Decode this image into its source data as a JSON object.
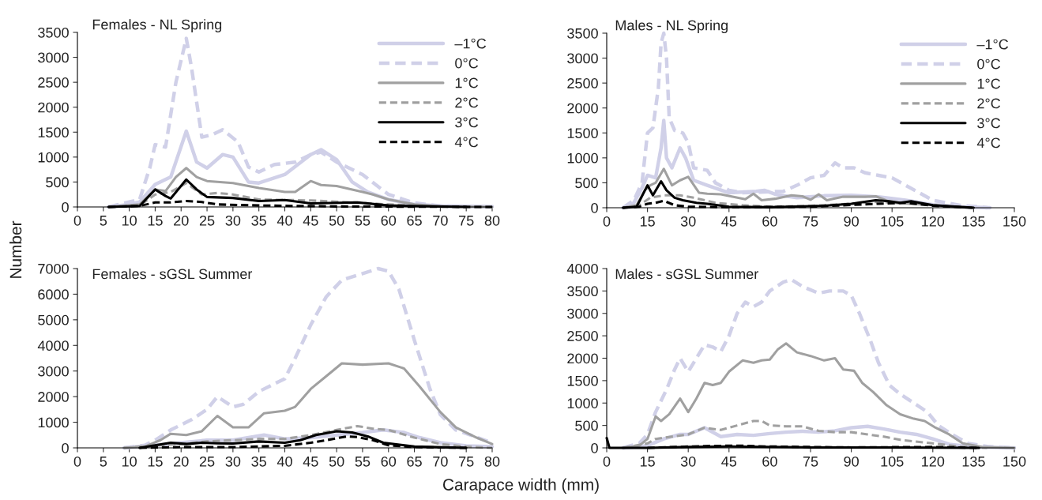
{
  "chart_data": [
    {
      "type": "line",
      "title": "Females - NL Spring",
      "ylabel": "Number",
      "xlim": [
        0,
        80
      ],
      "xticks": [
        0,
        5,
        10,
        15,
        20,
        25,
        30,
        35,
        40,
        45,
        50,
        55,
        60,
        65,
        70,
        75,
        80
      ],
      "ylim": [
        0,
        3500
      ],
      "yticks": [
        0,
        500,
        1000,
        1500,
        2000,
        2500,
        3000,
        3500
      ],
      "legend": "top right",
      "grid": false,
      "series": [
        {
          "name": "–1°C",
          "color": "#d0d0e8",
          "line_style": "solid",
          "x": [
            6,
            10,
            12,
            15,
            18,
            21,
            23,
            25,
            28,
            30,
            33,
            35,
            40,
            45,
            47,
            50,
            53,
            56,
            60,
            65,
            70,
            80
          ],
          "values": [
            0,
            50,
            100,
            450,
            600,
            1520,
            900,
            780,
            1050,
            1000,
            500,
            480,
            650,
            1050,
            1150,
            950,
            500,
            300,
            150,
            50,
            20,
            10
          ]
        },
        {
          "name": "0°C",
          "color": "#d0d0e8",
          "line_style": "dashed",
          "x": [
            6,
            10,
            12,
            14,
            15,
            17,
            19,
            21,
            22,
            24,
            26,
            28,
            31,
            33,
            35,
            38,
            42,
            45,
            47,
            50,
            55,
            60,
            65,
            70,
            80
          ],
          "values": [
            0,
            100,
            150,
            800,
            1250,
            1200,
            2500,
            3380,
            2800,
            1400,
            1450,
            1550,
            1300,
            800,
            700,
            850,
            900,
            1050,
            1100,
            900,
            650,
            250,
            80,
            20,
            0
          ]
        },
        {
          "name": "1°C",
          "color": "#a0a0a0",
          "line_style": "solid",
          "x": [
            6,
            12,
            15,
            17,
            19,
            21,
            23,
            25,
            30,
            35,
            40,
            42,
            45,
            47,
            50,
            55,
            57,
            60,
            65,
            70,
            80
          ],
          "values": [
            0,
            50,
            350,
            320,
            600,
            780,
            600,
            520,
            480,
            380,
            300,
            300,
            520,
            440,
            420,
            300,
            250,
            150,
            50,
            10,
            0
          ]
        },
        {
          "name": "2°C",
          "color": "#a0a0a0",
          "line_style": "dashed",
          "x": [
            6,
            12,
            15,
            18,
            21,
            24,
            27,
            30,
            35,
            45,
            55,
            60,
            70,
            80
          ],
          "values": [
            0,
            30,
            250,
            300,
            480,
            250,
            280,
            250,
            150,
            130,
            80,
            50,
            10,
            0
          ]
        },
        {
          "name": "3°C",
          "color": "#000000",
          "line_style": "solid",
          "x": [
            6,
            12,
            15,
            17,
            18,
            21,
            23,
            25,
            30,
            35,
            40,
            45,
            54,
            60,
            75
          ],
          "values": [
            0,
            20,
            350,
            220,
            170,
            550,
            350,
            200,
            180,
            120,
            140,
            70,
            90,
            30,
            0
          ]
        },
        {
          "name": "4°C",
          "color": "#000000",
          "line_style": "dashed",
          "x": [
            6,
            12,
            15,
            18,
            21,
            24,
            27,
            35,
            50,
            80
          ],
          "values": [
            0,
            20,
            90,
            90,
            120,
            100,
            50,
            30,
            10,
            0
          ]
        }
      ]
    },
    {
      "type": "line",
      "title": "Males - NL Spring",
      "xlim": [
        0,
        150
      ],
      "xticks": [
        0,
        15,
        30,
        45,
        60,
        75,
        90,
        105,
        120,
        135,
        150
      ],
      "ylim": [
        0,
        3500
      ],
      "yticks": [
        0,
        500,
        1000,
        1500,
        2000,
        2500,
        3000,
        3500
      ],
      "legend": "top right",
      "grid": false,
      "series": [
        {
          "name": "–1°C",
          "color": "#d0d0e8",
          "line_style": "solid",
          "x": [
            6,
            10,
            13,
            15,
            18,
            20,
            21,
            22,
            24,
            27,
            29,
            32,
            37,
            45,
            55,
            58,
            62,
            70,
            80,
            90,
            100,
            110,
            120,
            130,
            141
          ],
          "values": [
            0,
            100,
            400,
            650,
            600,
            1200,
            1750,
            1000,
            800,
            1200,
            1000,
            550,
            450,
            300,
            330,
            350,
            270,
            200,
            240,
            250,
            220,
            150,
            60,
            20,
            0
          ]
        },
        {
          "name": "0°C",
          "color": "#d0d0e8",
          "line_style": "dashed",
          "x": [
            6,
            10,
            13,
            15,
            17,
            19,
            20,
            21,
            22,
            23,
            25,
            28,
            30,
            32,
            37,
            40,
            45,
            50,
            60,
            65,
            70,
            75,
            80,
            84,
            87,
            91,
            95,
            100,
            105,
            110,
            120,
            130,
            140
          ],
          "values": [
            0,
            150,
            500,
            1500,
            1600,
            2400,
            3300,
            3500,
            3000,
            1800,
            1550,
            1500,
            1300,
            800,
            750,
            500,
            350,
            300,
            320,
            330,
            450,
            600,
            650,
            900,
            800,
            800,
            700,
            650,
            600,
            450,
            150,
            50,
            0
          ]
        },
        {
          "name": "1°C",
          "color": "#a0a0a0",
          "line_style": "solid",
          "x": [
            6,
            11,
            14,
            16,
            18,
            21,
            24,
            27,
            30,
            34,
            37,
            42,
            51,
            54,
            57,
            62,
            68,
            72,
            75,
            78,
            81,
            87,
            95,
            99,
            105,
            112,
            120,
            130,
            135
          ],
          "values": [
            0,
            50,
            350,
            450,
            500,
            780,
            450,
            550,
            620,
            300,
            280,
            270,
            170,
            280,
            150,
            180,
            250,
            230,
            160,
            270,
            150,
            220,
            220,
            230,
            100,
            80,
            50,
            10,
            0
          ]
        },
        {
          "name": "2°C",
          "color": "#a0a0a0",
          "line_style": "dashed",
          "x": [
            6,
            12,
            16,
            21,
            27,
            32,
            40,
            50,
            60,
            75,
            90,
            100,
            105,
            115,
            125,
            135
          ],
          "values": [
            0,
            50,
            200,
            250,
            250,
            200,
            100,
            50,
            20,
            40,
            80,
            120,
            100,
            80,
            30,
            0
          ]
        },
        {
          "name": "3°C",
          "color": "#000000",
          "line_style": "solid",
          "x": [
            6,
            11,
            15,
            17,
            20,
            22,
            25,
            28,
            33,
            37,
            45,
            60,
            80,
            90,
            99,
            104,
            108,
            112,
            120,
            135
          ],
          "values": [
            0,
            20,
            450,
            250,
            530,
            350,
            200,
            150,
            100,
            80,
            20,
            10,
            40,
            80,
            150,
            130,
            100,
            130,
            50,
            0
          ]
        },
        {
          "name": "4°C",
          "color": "#000000",
          "line_style": "dashed",
          "x": [
            6,
            12,
            15,
            18,
            21,
            25,
            30,
            45,
            75,
            100,
            110,
            120,
            135
          ],
          "values": [
            0,
            20,
            80,
            100,
            140,
            50,
            20,
            10,
            20,
            80,
            100,
            40,
            0
          ]
        }
      ]
    },
    {
      "type": "line",
      "title": "Females - sGSL Summer",
      "xlabel": "Carapace width (mm)",
      "xlim": [
        0,
        80
      ],
      "xticks": [
        0,
        5,
        10,
        15,
        20,
        25,
        30,
        35,
        40,
        45,
        50,
        55,
        60,
        65,
        70,
        75,
        80
      ],
      "ylim": [
        0,
        7000
      ],
      "yticks": [
        0,
        1000,
        2000,
        3000,
        4000,
        5000,
        6000,
        7000
      ],
      "grid": false,
      "series": [
        {
          "color": "#d0d0e8",
          "line_style": "solid",
          "x": [
            9,
            15,
            20,
            25,
            30,
            36,
            40,
            45,
            50,
            55,
            59,
            63,
            66,
            70,
            75,
            80
          ],
          "values": [
            0,
            100,
            200,
            300,
            300,
            500,
            350,
            400,
            500,
            600,
            700,
            600,
            400,
            200,
            80,
            50
          ]
        },
        {
          "color": "#d0d0e8",
          "line_style": "dashed",
          "x": [
            9,
            13,
            15,
            18,
            22,
            25,
            27,
            30,
            32,
            35,
            40,
            42,
            45,
            48,
            51,
            55,
            58,
            60,
            62,
            65,
            68,
            70,
            73,
            80
          ],
          "values": [
            0,
            100,
            300,
            700,
            1100,
            1500,
            2000,
            1600,
            1700,
            2200,
            2700,
            3500,
            4800,
            5900,
            6550,
            6800,
            7000,
            6900,
            6200,
            4200,
            2300,
            1300,
            700,
            200
          ]
        },
        {
          "color": "#a0a0a0",
          "line_style": "solid",
          "x": [
            9,
            13,
            16,
            18,
            21,
            24,
            27,
            30,
            33,
            36,
            40,
            42,
            45,
            48,
            51,
            55,
            60,
            63,
            66,
            70,
            73,
            77,
            80
          ],
          "values": [
            0,
            50,
            300,
            550,
            500,
            650,
            1250,
            800,
            800,
            1350,
            1450,
            1600,
            2300,
            2800,
            3300,
            3250,
            3300,
            3100,
            2400,
            1400,
            800,
            400,
            150
          ]
        },
        {
          "color": "#a0a0a0",
          "line_style": "dashed",
          "x": [
            9,
            15,
            20,
            25,
            30,
            35,
            40,
            45,
            50,
            54,
            57,
            60,
            65,
            70,
            75,
            80
          ],
          "values": [
            0,
            100,
            150,
            250,
            300,
            350,
            350,
            500,
            700,
            850,
            750,
            700,
            400,
            150,
            50,
            0
          ]
        },
        {
          "color": "#000000",
          "line_style": "solid",
          "x": [
            12,
            15,
            18,
            21,
            24,
            27,
            30,
            35,
            40,
            43,
            46,
            50,
            53,
            56,
            59,
            65,
            75
          ],
          "values": [
            0,
            100,
            200,
            150,
            200,
            180,
            170,
            250,
            200,
            300,
            500,
            650,
            600,
            450,
            200,
            50,
            0
          ]
        },
        {
          "color": "#000000",
          "line_style": "dashed",
          "x": [
            12,
            20,
            30,
            40,
            45,
            48,
            52,
            54,
            57,
            60,
            65,
            75
          ],
          "values": [
            0,
            30,
            30,
            80,
            200,
            300,
            450,
            420,
            300,
            100,
            30,
            0
          ]
        }
      ]
    },
    {
      "type": "line",
      "title": "Males - sGSL Summer",
      "xlim": [
        0,
        150
      ],
      "xticks": [
        0,
        15,
        30,
        45,
        60,
        75,
        90,
        105,
        120,
        135,
        150
      ],
      "ylim": [
        0,
        4000
      ],
      "yticks": [
        0,
        500,
        1000,
        1500,
        2000,
        2500,
        3000,
        3500,
        4000
      ],
      "grid": false,
      "series": [
        {
          "color": "#d0d0e8",
          "line_style": "solid",
          "x": [
            6,
            15,
            21,
            27,
            30,
            36,
            42,
            48,
            54,
            60,
            66,
            72,
            78,
            84,
            90,
            96,
            102,
            108,
            114,
            120,
            126,
            135,
            150
          ],
          "values": [
            0,
            50,
            200,
            300,
            300,
            450,
            250,
            300,
            280,
            320,
            350,
            370,
            350,
            380,
            450,
            480,
            420,
            350,
            300,
            200,
            80,
            20,
            0
          ]
        },
        {
          "color": "#d0d0e8",
          "line_style": "dashed",
          "x": [
            6,
            12,
            15,
            18,
            22,
            25,
            27,
            30,
            33,
            36,
            39,
            42,
            45,
            48,
            51,
            54,
            57,
            60,
            65,
            68,
            72,
            78,
            82,
            87,
            90,
            93,
            97,
            100,
            104,
            108,
            113,
            118,
            122,
            127,
            133,
            140,
            150
          ],
          "values": [
            0,
            100,
            300,
            800,
            1300,
            1750,
            2000,
            1700,
            2000,
            2300,
            2250,
            2150,
            2500,
            3000,
            3250,
            3150,
            3250,
            3500,
            3700,
            3750,
            3600,
            3450,
            3500,
            3500,
            3400,
            3000,
            2400,
            1900,
            1400,
            1200,
            1000,
            800,
            500,
            300,
            100,
            30,
            0
          ]
        },
        {
          "color": "#a0a0a0",
          "line_style": "solid",
          "x": [
            6,
            12,
            15,
            18,
            20,
            23,
            27,
            30,
            33,
            36,
            39,
            42,
            45,
            50,
            54,
            57,
            60,
            63,
            66,
            70,
            75,
            80,
            84,
            87,
            91,
            94,
            98,
            103,
            108,
            113,
            117,
            121,
            126,
            131,
            138,
            150
          ],
          "values": [
            0,
            50,
            200,
            700,
            600,
            750,
            1100,
            800,
            1100,
            1450,
            1400,
            1450,
            1700,
            1950,
            1900,
            1950,
            1970,
            2200,
            2330,
            2130,
            2050,
            1950,
            2000,
            1750,
            1720,
            1450,
            1250,
            950,
            750,
            650,
            600,
            450,
            300,
            100,
            20,
            0
          ]
        },
        {
          "color": "#a0a0a0",
          "line_style": "dashed",
          "x": [
            6,
            15,
            18,
            24,
            30,
            36,
            42,
            48,
            54,
            57,
            60,
            66,
            72,
            78,
            84,
            90,
            96,
            102,
            108,
            120,
            130,
            140
          ],
          "values": [
            0,
            100,
            200,
            250,
            300,
            450,
            400,
            500,
            600,
            600,
            500,
            480,
            480,
            380,
            350,
            350,
            300,
            250,
            180,
            100,
            30,
            0
          ]
        },
        {
          "color": "#000000",
          "line_style": "solid",
          "x": [
            0,
            1,
            15,
            30,
            45,
            75,
            105,
            137
          ],
          "values": [
            220,
            0,
            0,
            20,
            30,
            10,
            10,
            0
          ]
        },
        {
          "color": "#000000",
          "line_style": "dashed",
          "x": [
            15,
            36,
            48,
            60,
            90,
            120,
            137
          ],
          "values": [
            0,
            40,
            50,
            30,
            10,
            20,
            0
          ]
        }
      ]
    }
  ]
}
